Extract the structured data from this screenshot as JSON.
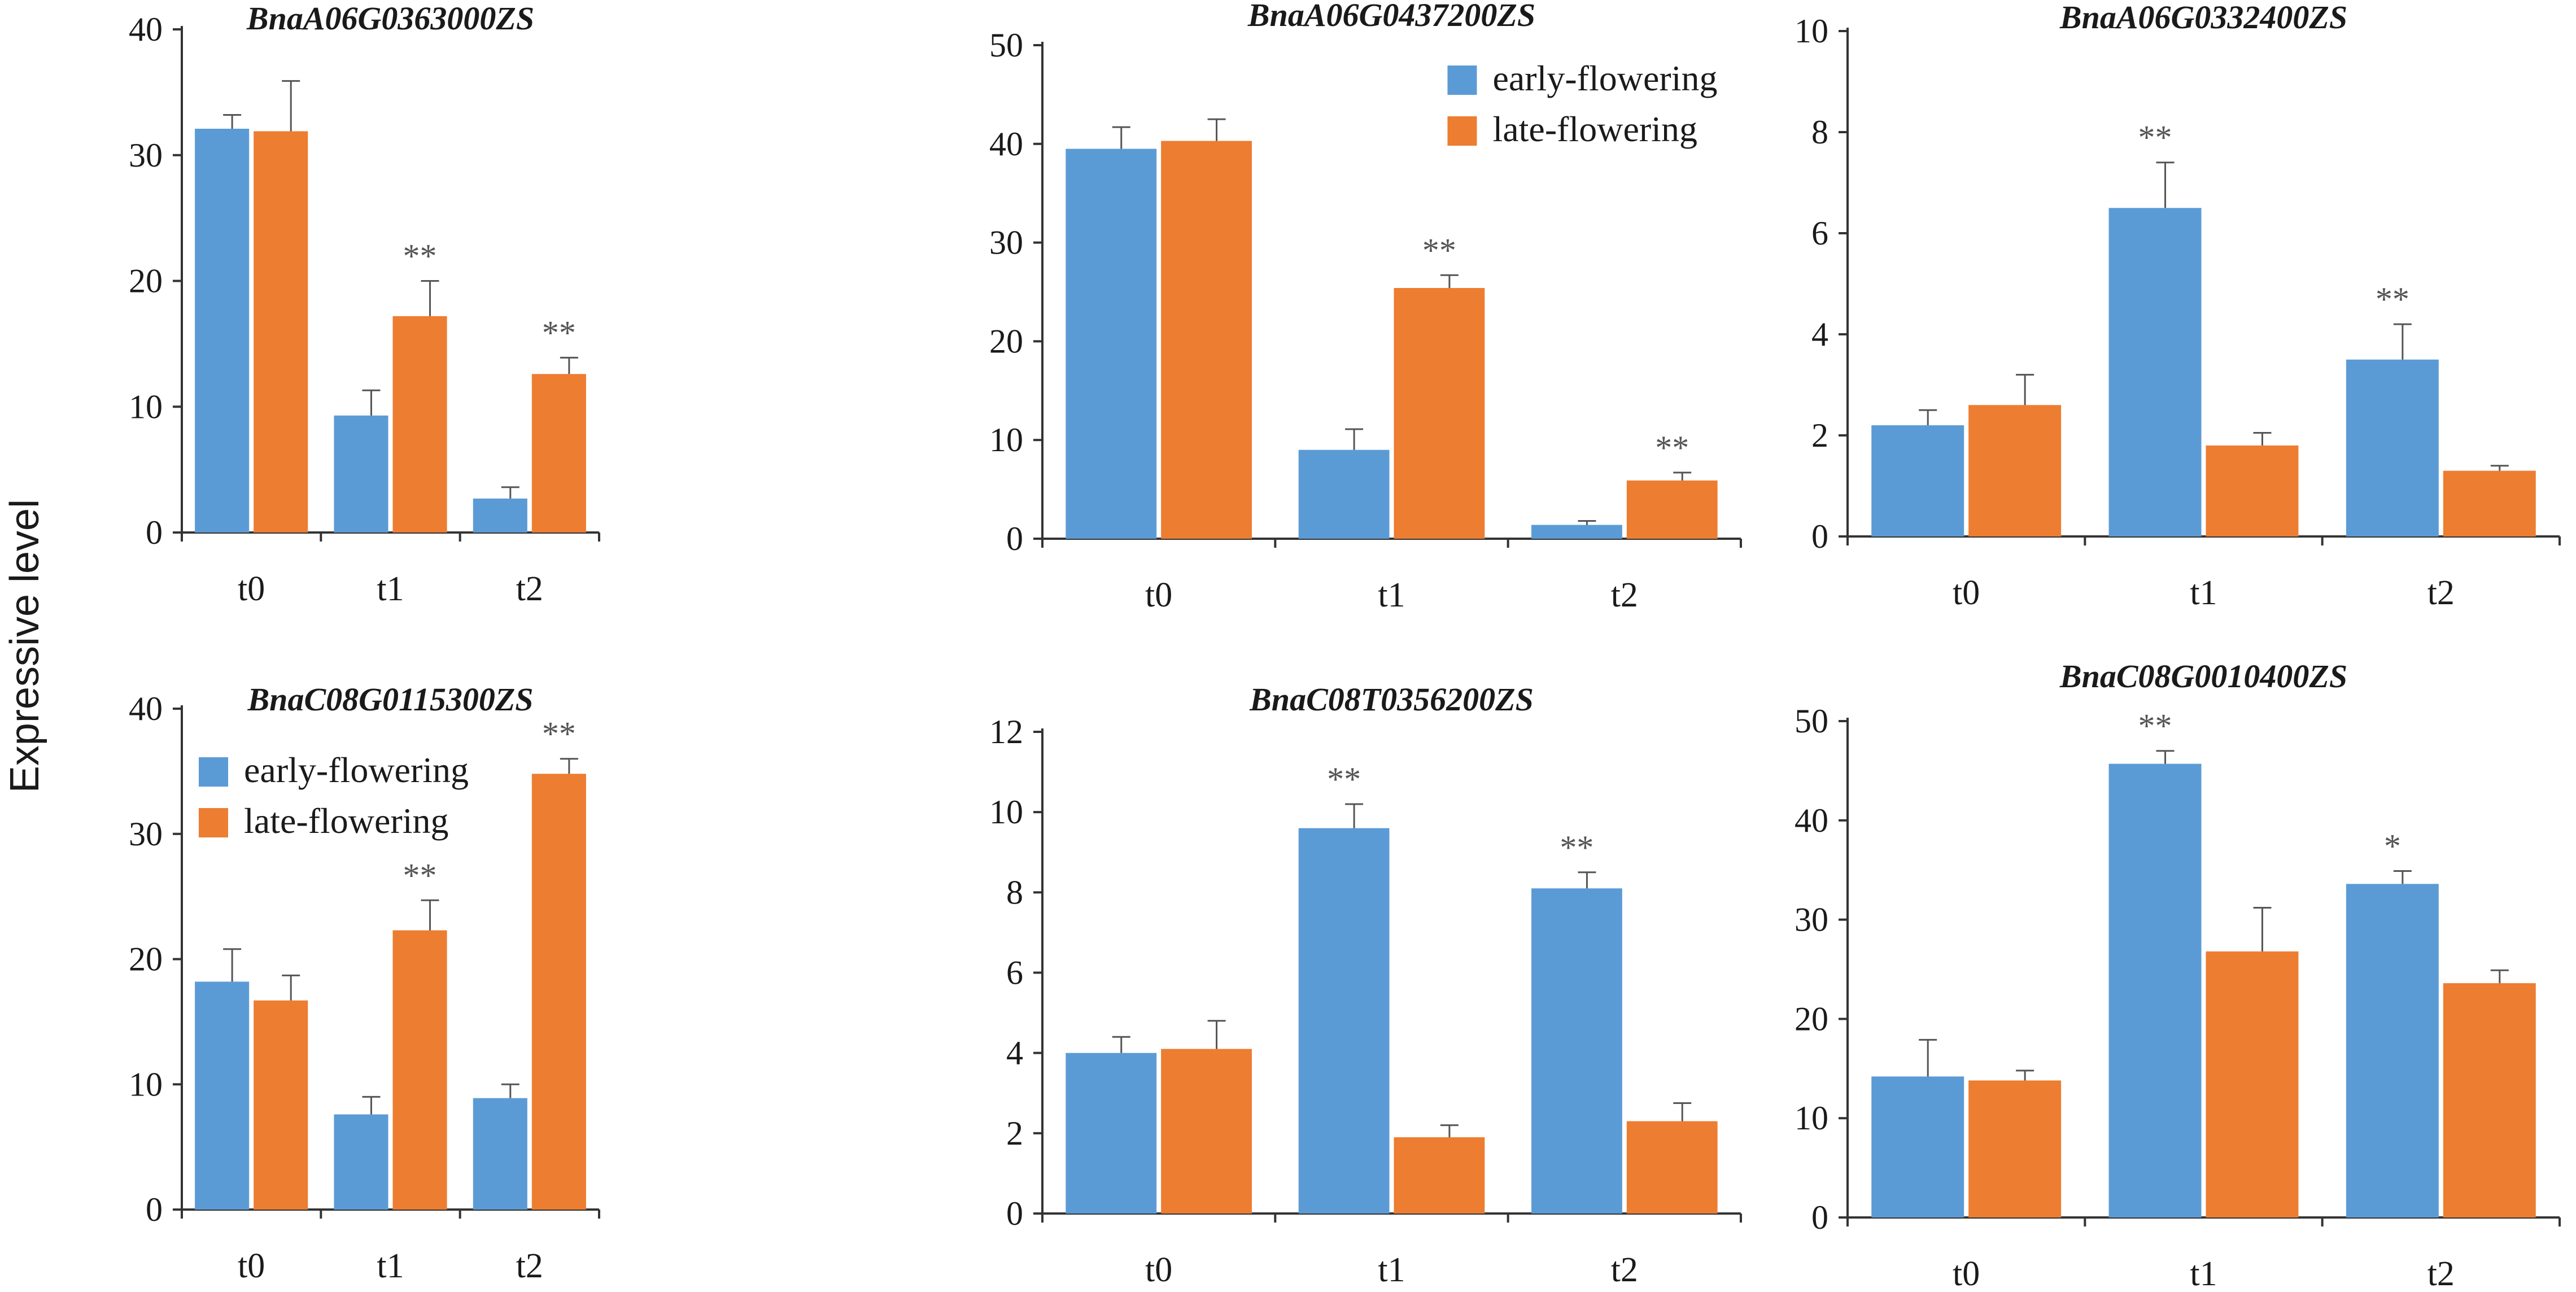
{
  "ylabel": "Expressive level",
  "colors": {
    "early": "#5b9bd5",
    "late": "#ed7d31",
    "axis": "#333333",
    "error": "#555555"
  },
  "legend_labels": {
    "early": "early-flowering",
    "late": "late-flowering"
  },
  "chart_data": [
    {
      "type": "bar",
      "title": "BnaA06G0363000ZS",
      "categories": [
        "t0",
        "t1",
        "t2"
      ],
      "ylim": [
        0,
        40
      ],
      "yticks": [
        0,
        10,
        20,
        30,
        40
      ],
      "series": [
        {
          "name": "early-flowering",
          "values": [
            32.1,
            9.3,
            2.7
          ],
          "errors": [
            1.1,
            2.0,
            0.9
          ]
        },
        {
          "name": "late-flowering",
          "values": [
            31.9,
            17.2,
            12.6
          ],
          "errors": [
            4.0,
            2.8,
            1.3
          ]
        }
      ],
      "significance": [
        {
          "category": "t1",
          "series": "late-flowering",
          "label": "**"
        },
        {
          "category": "t2",
          "series": "late-flowering",
          "label": "**"
        }
      ],
      "legend": false
    },
    {
      "type": "bar",
      "title": "BnaA06G0437200ZS",
      "categories": [
        "t0",
        "t1",
        "t2"
      ],
      "ylim": [
        0,
        50
      ],
      "yticks": [
        0,
        10,
        20,
        30,
        40,
        50
      ],
      "series": [
        {
          "name": "early-flowering",
          "values": [
            39.5,
            9.0,
            1.4
          ],
          "errors": [
            2.2,
            2.1,
            0.4
          ]
        },
        {
          "name": "late-flowering",
          "values": [
            40.3,
            25.4,
            5.9
          ],
          "errors": [
            2.2,
            1.3,
            0.8
          ]
        }
      ],
      "significance": [
        {
          "category": "t1",
          "series": "late-flowering",
          "label": "**"
        },
        {
          "category": "t2",
          "series": "late-flowering",
          "label": "**"
        }
      ],
      "legend": true,
      "legend_position": "top-right"
    },
    {
      "type": "bar",
      "title": "BnaA06G0332400ZS",
      "categories": [
        "t0",
        "t1",
        "t2"
      ],
      "ylim": [
        0,
        10
      ],
      "yticks": [
        0,
        2,
        4,
        6,
        8,
        10
      ],
      "series": [
        {
          "name": "early-flowering",
          "values": [
            2.2,
            6.5,
            3.5
          ],
          "errors": [
            0.3,
            0.9,
            0.7
          ]
        },
        {
          "name": "late-flowering",
          "values": [
            2.6,
            1.8,
            1.3
          ],
          "errors": [
            0.6,
            0.25,
            0.1
          ]
        }
      ],
      "significance": [
        {
          "category": "t1",
          "series": "early-flowering",
          "label": "**"
        },
        {
          "category": "t2",
          "series": "early-flowering",
          "label": "**"
        }
      ],
      "legend": false
    },
    {
      "type": "bar",
      "title": "BnaC08G0115300ZS",
      "categories": [
        "t0",
        "t1",
        "t2"
      ],
      "ylim": [
        0,
        40
      ],
      "yticks": [
        0,
        10,
        20,
        30,
        40
      ],
      "series": [
        {
          "name": "early-flowering",
          "values": [
            18.2,
            7.6,
            8.9
          ],
          "errors": [
            2.6,
            1.4,
            1.1
          ]
        },
        {
          "name": "late-flowering",
          "values": [
            16.7,
            22.3,
            34.8
          ],
          "errors": [
            2.0,
            2.4,
            1.2
          ]
        }
      ],
      "significance": [
        {
          "category": "t1",
          "series": "late-flowering",
          "label": "**"
        },
        {
          "category": "t2",
          "series": "late-flowering",
          "label": "**"
        }
      ],
      "legend": true,
      "legend_position": "top-left"
    },
    {
      "type": "bar",
      "title": "BnaC08T0356200ZS",
      "categories": [
        "t0",
        "t1",
        "t2"
      ],
      "ylim": [
        0,
        12
      ],
      "yticks": [
        0,
        2,
        4,
        6,
        8,
        10,
        12
      ],
      "series": [
        {
          "name": "early-flowering",
          "values": [
            4.0,
            9.6,
            8.1
          ],
          "errors": [
            0.4,
            0.6,
            0.4
          ]
        },
        {
          "name": "late-flowering",
          "values": [
            4.1,
            1.9,
            2.3
          ],
          "errors": [
            0.7,
            0.3,
            0.45
          ]
        }
      ],
      "significance": [
        {
          "category": "t1",
          "series": "early-flowering",
          "label": "**"
        },
        {
          "category": "t2",
          "series": "early-flowering",
          "label": "**"
        }
      ],
      "legend": false
    },
    {
      "type": "bar",
      "title": "BnaC08G0010400ZS",
      "categories": [
        "t0",
        "t1",
        "t2"
      ],
      "ylim": [
        0,
        50
      ],
      "yticks": [
        0,
        10,
        20,
        30,
        40,
        50
      ],
      "series": [
        {
          "name": "early-flowering",
          "values": [
            14.2,
            45.7,
            33.6
          ],
          "errors": [
            3.7,
            1.3,
            1.3
          ]
        },
        {
          "name": "late-flowering",
          "values": [
            13.8,
            26.8,
            23.6
          ],
          "errors": [
            1.0,
            4.4,
            1.3
          ]
        }
      ],
      "significance": [
        {
          "category": "t1",
          "series": "early-flowering",
          "label": "**"
        },
        {
          "category": "t2",
          "series": "early-flowering",
          "label": "*"
        }
      ],
      "legend": false
    }
  ]
}
